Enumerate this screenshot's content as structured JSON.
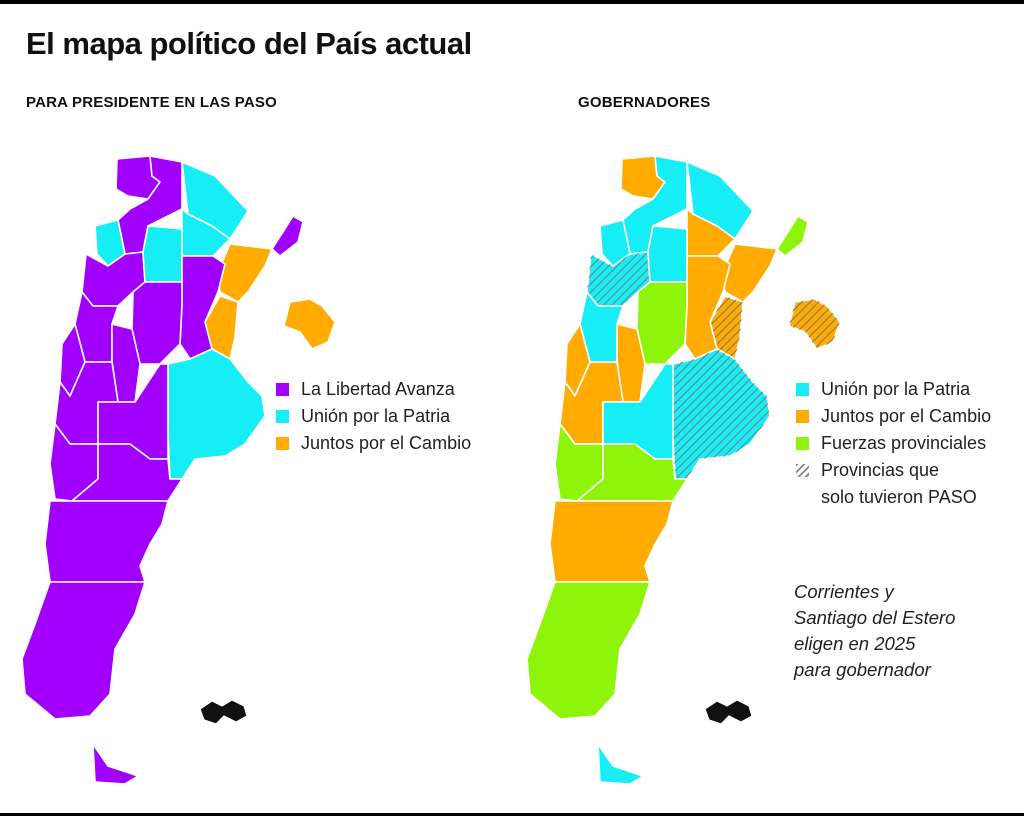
{
  "title": "El mapa político del País actual",
  "maps": [
    {
      "id": "presidente",
      "subtitle": "PARA PRESIDENTE EN LAS PASO",
      "legend": [
        {
          "label": "La Libertad Avanza",
          "color": "#a100ff",
          "hatched": false
        },
        {
          "label": "Unión por la Patria",
          "color": "#16eef5",
          "hatched": false
        },
        {
          "label": "Juntos por el Cambio",
          "color": "#ffab00",
          "hatched": false
        }
      ]
    },
    {
      "id": "gobernadores",
      "subtitle": "GOBERNADORES",
      "legend": [
        {
          "label": "Unión por la Patria",
          "color": "#16eef5",
          "hatched": false
        },
        {
          "label": "Juntos por el Cambio",
          "color": "#ffab00",
          "hatched": false
        },
        {
          "label": "Fuerzas provinciales",
          "color": "#8ef50a",
          "hatched": false
        },
        {
          "label": "Provincias que\nsolo tuvieron PASO",
          "color": "#888888",
          "hatched": true
        }
      ]
    }
  ],
  "note": "Corrientes y\nSantiago del Estero\neligen en 2025\npara gobernador",
  "colors": {
    "lla": "#a100ff",
    "uxp": "#16eef5",
    "jxc": "#ffab00",
    "fp": "#8ef50a",
    "border": "#ffffff",
    "islands": "#111111"
  },
  "results": {
    "presidente": {
      "jujuy": "lla",
      "salta": "lla",
      "catamarca": "lla",
      "tucuman": "uxp",
      "santiago": "uxp",
      "formosa": "uxp",
      "chaco": "uxp",
      "misiones": "lla",
      "corrientes": "jxc",
      "entre_rios": "jxc",
      "santa_fe": "lla",
      "la_rioja": "lla",
      "san_juan": "lla",
      "mendoza": "lla",
      "san_luis": "lla",
      "cordoba": "lla",
      "buenos_aires": "uxp",
      "caba": "jxc",
      "la_pampa": "lla",
      "neuquen": "lla",
      "rio_negro": "lla",
      "chubut": "lla",
      "santa_cruz": "lla",
      "tierra_del_fuego": "lla"
    },
    "gobernadores": {
      "jujuy": "jxc",
      "salta": "uxp",
      "catamarca": "uxp",
      "tucuman": "uxp",
      "santiago": "uxp",
      "formosa": "uxp",
      "chaco": "jxc",
      "misiones": "fp",
      "corrientes": "jxc",
      "entre_rios": "jxc",
      "santa_fe": "jxc",
      "la_rioja": "uxp",
      "san_juan": "jxc",
      "mendoza": "jxc",
      "san_luis": "jxc",
      "cordoba": "fp",
      "buenos_aires": "uxp",
      "caba": "jxc",
      "la_pampa": "uxp",
      "neuquen": "fp",
      "rio_negro": "fp",
      "chubut": "jxc",
      "santa_cruz": "fp",
      "tierra_del_fuego": "uxp"
    },
    "paso_only": [
      "catamarca",
      "buenos_aires",
      "entre_rios",
      "caba"
    ]
  }
}
